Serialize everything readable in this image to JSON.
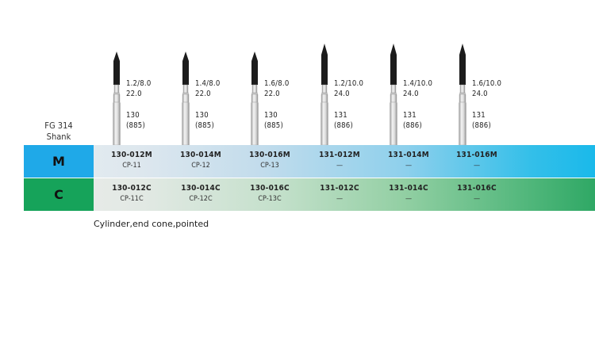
{
  "shank_label_line1": "FG 314",
  "shank_label_line2": "Shank",
  "burs": [
    {
      "size": "1.2/8.0",
      "length": "22.0",
      "shape": "130",
      "iso": "(885)",
      "tall": false
    },
    {
      "size": "1.4/8.0",
      "length": "22.0",
      "shape": "130",
      "iso": "(885)",
      "tall": false
    },
    {
      "size": "1.6/8.0",
      "length": "22.0",
      "shape": "130",
      "iso": "(885)",
      "tall": false
    },
    {
      "size": "1.2/10.0",
      "length": "24.0",
      "shape": "131",
      "iso": "(886)",
      "tall": true
    },
    {
      "size": "1.4/10.0",
      "length": "24.0",
      "shape": "131",
      "iso": "(886)",
      "tall": true
    },
    {
      "size": "1.6/10.0",
      "length": "24.0",
      "shape": "131",
      "iso": "(886)",
      "tall": true
    }
  ],
  "rows": [
    {
      "grit": "M",
      "color": "#1fa9e8",
      "cells": [
        {
          "code": "130-012M",
          "ref": "CP-11"
        },
        {
          "code": "130-014M",
          "ref": "CP-12"
        },
        {
          "code": "130-016M",
          "ref": "CP-13"
        },
        {
          "code": "131-012M",
          "ref": "—"
        },
        {
          "code": "131-014M",
          "ref": "—"
        },
        {
          "code": "131-016M",
          "ref": "—"
        }
      ]
    },
    {
      "grit": "C",
      "color": "#16a35a",
      "cells": [
        {
          "code": "130-012C",
          "ref": "CP-11C"
        },
        {
          "code": "130-014C",
          "ref": "CP-12C"
        },
        {
          "code": "130-016C",
          "ref": "CP-13C"
        },
        {
          "code": "131-012C",
          "ref": "—"
        },
        {
          "code": "131-014C",
          "ref": "—"
        },
        {
          "code": "131-016C",
          "ref": "—"
        }
      ]
    }
  ],
  "caption": "Cylinder,end cone,pointed"
}
